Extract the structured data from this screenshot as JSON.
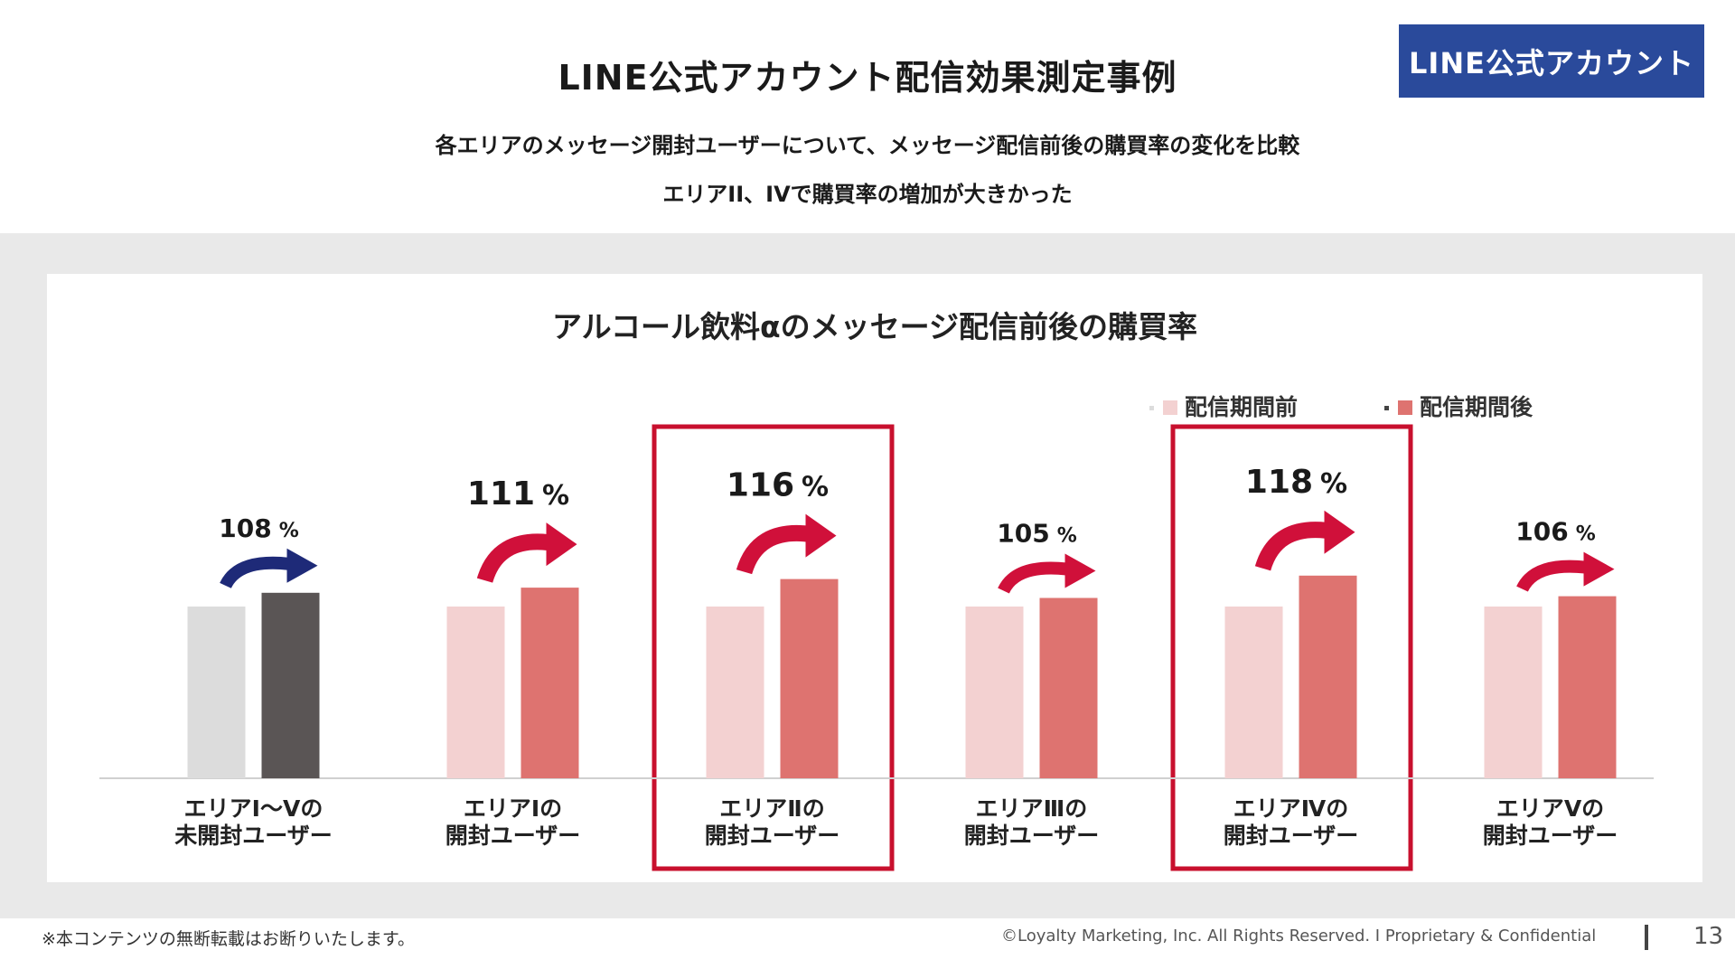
{
  "header": {
    "title": "LINE公式アカウント配信効果測定事例",
    "badge": "LINE公式アカウント",
    "subtitle1": "各エリアのメッセージ開封ユーザーについて、メッセージ配信前後の購買率の変化を比較",
    "subtitle2": "エリアII、IVで購買率の増加が大きかった"
  },
  "chart_data": {
    "type": "bar",
    "title": "アルコール飲料αのメッセージ配信前後の購買率",
    "categories": [
      [
        "エリアⅠ～Ⅴの",
        "未開封ユーザー"
      ],
      [
        "エリアⅠの",
        "開封ユーザー"
      ],
      [
        "エリアⅡの",
        "開封ユーザー"
      ],
      [
        "エリアⅢの",
        "開封ユーザー"
      ],
      [
        "エリアⅣの",
        "開封ユーザー"
      ],
      [
        "エリアⅤの",
        "開封ユーザー"
      ]
    ],
    "series": [
      {
        "name": "配信期間前",
        "values": [
          100,
          100,
          100,
          100,
          100,
          100
        ]
      },
      {
        "name": "配信期間後",
        "values": [
          108,
          111,
          116,
          105,
          118,
          106
        ]
      }
    ],
    "ratio_labels": [
      "108",
      "111",
      "116",
      "105",
      "118",
      "106"
    ],
    "percent_sign": "%",
    "highlighted": [
      2,
      4
    ],
    "legend_position": "top-right",
    "grid": false,
    "colors": {
      "before": "#f3d1d1",
      "after": "#de7370",
      "before_base": "#dcdcdc",
      "after_base": "#5a5555",
      "arrow": "#d0103a",
      "arrow_base": "#1e2a78",
      "highlight": "#c8102e"
    }
  },
  "footer": {
    "note": "※本コンテンツの無断転載はお断りいたします。",
    "copyright": "©Loyalty Marketing, Inc. All Rights Reserved.  I  Proprietary & Confidential",
    "page": "13"
  }
}
